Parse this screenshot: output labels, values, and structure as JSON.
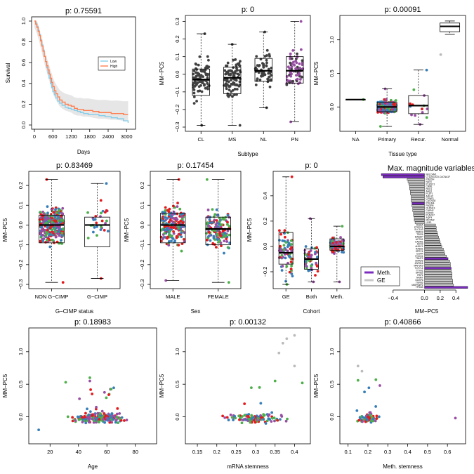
{
  "colors": {
    "box_point": "#404040",
    "purple": "#984EA3",
    "red": "#E41A1C",
    "blue": "#377EB8",
    "green": "#4DAF4A",
    "gray": "#BBBBBB",
    "km_low": "#87CEEB",
    "km_high": "#FF7F50",
    "bar_meth": "#7B2CBF",
    "bar_ge": "#C8C8C8"
  },
  "chart_data": [
    {
      "id": "survival",
      "type": "line",
      "title": "p: 0.75591",
      "xlabel": "Days",
      "ylabel": "Survival",
      "xlim": [
        0,
        3200
      ],
      "ylim": [
        0,
        1
      ],
      "xticks": [
        "0",
        "600",
        "1200",
        "1800",
        "2400",
        "3000"
      ],
      "yticks": [
        "0.0",
        "0.2",
        "0.4",
        "0.6",
        "0.8",
        "1.0"
      ],
      "legend": [
        "Low",
        "High"
      ],
      "series": [
        {
          "name": "Low",
          "x": [
            0,
            40,
            80,
            120,
            160,
            200,
            240,
            280,
            320,
            360,
            400,
            440,
            480,
            520,
            560,
            600,
            650,
            700,
            760,
            820,
            900,
            1000,
            1100,
            1200,
            1300,
            1400,
            1500,
            1600,
            1750,
            1900,
            2100,
            2300,
            2500,
            2700,
            2900,
            3050
          ],
          "y": [
            1.0,
            0.98,
            0.95,
            0.91,
            0.87,
            0.82,
            0.77,
            0.72,
            0.66,
            0.61,
            0.55,
            0.5,
            0.45,
            0.4,
            0.36,
            0.32,
            0.29,
            0.26,
            0.23,
            0.21,
            0.19,
            0.17,
            0.16,
            0.15,
            0.14,
            0.13,
            0.12,
            0.11,
            0.1,
            0.1,
            0.09,
            0.08,
            0.07,
            0.06,
            0.04,
            0.02
          ]
        },
        {
          "name": "High",
          "x": [
            0,
            40,
            80,
            120,
            160,
            200,
            240,
            280,
            320,
            360,
            400,
            440,
            480,
            520,
            560,
            600,
            650,
            700,
            760,
            820,
            900,
            1000,
            1100,
            1200,
            1300,
            1400,
            1500,
            1600,
            1750,
            1900,
            2100,
            2300,
            2500,
            2700,
            2900,
            3050
          ],
          "y": [
            1.0,
            0.97,
            0.94,
            0.9,
            0.86,
            0.81,
            0.76,
            0.71,
            0.66,
            0.61,
            0.57,
            0.53,
            0.49,
            0.45,
            0.41,
            0.37,
            0.33,
            0.3,
            0.27,
            0.24,
            0.22,
            0.2,
            0.19,
            0.18,
            0.16,
            0.15,
            0.15,
            0.14,
            0.14,
            0.13,
            0.12,
            0.12,
            0.11,
            0.11,
            0.1,
            0.1
          ]
        }
      ]
    },
    {
      "id": "subtype",
      "type": "box",
      "title": "p: 0",
      "xlabel": "Subtype",
      "ylabel": "MM−PC5",
      "ylim": [
        -0.3,
        0.31
      ],
      "yticks": [
        -0.3,
        -0.2,
        -0.1,
        0.0,
        0.1,
        0.2,
        0.3
      ],
      "categories": [
        "CL",
        "MS",
        "NL",
        "PN"
      ],
      "boxes": [
        {
          "min": -0.29,
          "q1": -0.12,
          "median": -0.03,
          "q3": 0.03,
          "max": 0.23
        },
        {
          "min": -0.29,
          "q1": -0.11,
          "median": -0.02,
          "q3": 0.04,
          "max": 0.17
        },
        {
          "min": -0.19,
          "q1": -0.04,
          "median": 0.02,
          "q3": 0.09,
          "max": 0.24
        },
        {
          "min": -0.27,
          "q1": -0.05,
          "median": 0.02,
          "q3": 0.1,
          "max": 0.3
        }
      ]
    },
    {
      "id": "tissue",
      "type": "box",
      "title": "p: 0.00091",
      "xlabel": "Tissue type",
      "ylabel": "MM−PC5",
      "ylim": [
        -0.3,
        1.3
      ],
      "yticks": [
        0.0,
        0.5,
        1.0
      ],
      "categories": [
        "NA",
        "Primary",
        "Recur.",
        "Normal"
      ],
      "boxes": [
        {
          "min": 0.11,
          "q1": 0.11,
          "median": 0.11,
          "q3": 0.11,
          "max": 0.11
        },
        {
          "min": -0.29,
          "q1": -0.07,
          "median": 0.0,
          "q3": 0.07,
          "max": 0.27
        },
        {
          "min": -0.26,
          "q1": -0.1,
          "median": 0.02,
          "q3": 0.17,
          "max": 0.55
        },
        {
          "min": 1.08,
          "q1": 1.12,
          "median": 1.2,
          "q3": 1.25,
          "max": 1.28
        }
      ]
    },
    {
      "id": "gcimp",
      "type": "box",
      "title": "p: 0.83469",
      "xlabel": "G−CIMP status",
      "ylabel": "MM−PC5",
      "ylim": [
        -0.3,
        0.25
      ],
      "yticks": [
        -0.3,
        -0.2,
        -0.1,
        0.0,
        0.1,
        0.2
      ],
      "categories": [
        "NON G−CIMP",
        "G−CIMP"
      ],
      "boxes": [
        {
          "min": -0.29,
          "q1": -0.09,
          "median": 0.0,
          "q3": 0.05,
          "max": 0.23
        },
        {
          "min": -0.27,
          "q1": -0.11,
          "median": 0.0,
          "q3": 0.04,
          "max": 0.21
        }
      ]
    },
    {
      "id": "sex",
      "type": "box",
      "title": "p: 0.17454",
      "xlabel": "Sex",
      "ylabel": "MM−PC5",
      "ylim": [
        -0.3,
        0.25
      ],
      "yticks": [
        -0.3,
        -0.2,
        -0.1,
        0.0,
        0.1,
        0.2
      ],
      "categories": [
        "MALE",
        "FEMALE"
      ],
      "boxes": [
        {
          "min": -0.28,
          "q1": -0.09,
          "median": 0.0,
          "q3": 0.06,
          "max": 0.23
        },
        {
          "min": -0.29,
          "q1": -0.1,
          "median": -0.02,
          "q3": 0.04,
          "max": 0.23
        }
      ]
    },
    {
      "id": "cohort",
      "type": "box",
      "title": "p: 0",
      "xlabel": "Cohort",
      "ylabel": "MM−PC5",
      "ylim": [
        -0.3,
        0.56
      ],
      "yticks": [
        -0.2,
        0.0,
        0.2,
        0.4
      ],
      "categories": [
        "GE",
        "Both",
        "Meth."
      ],
      "boxes": [
        {
          "min": -0.3,
          "q1": -0.14,
          "median": -0.05,
          "q3": 0.11,
          "max": 0.55
        },
        {
          "min": -0.28,
          "q1": -0.18,
          "median": -0.1,
          "q3": -0.02,
          "max": 0.22
        },
        {
          "min": -0.28,
          "q1": -0.03,
          "median": 0.0,
          "q3": 0.06,
          "max": 0.16
        }
      ]
    },
    {
      "id": "maxmag",
      "type": "bar",
      "title": "Max. magnitude variables",
      "xlabel": "MM−PC5",
      "xlim": [
        -0.55,
        0.55
      ],
      "xticks": [
        "−0.4",
        "0.0",
        "0.2",
        "0.4"
      ],
      "legend": [
        "Meth.",
        "GE"
      ],
      "categories": [
        "NFLC4M1",
        "CTD2514C5.CACNA1F",
        "PRODH",
        "NAT6",
        "PLXDC1",
        "CHML",
        "NKD1",
        "AAQ1",
        "PLZF1",
        "ARL4C",
        "CPNE3",
        "CACNG8",
        "PDLIM4",
        "PAQR6",
        "OLFML3",
        "CAPN2",
        "FGFR3",
        "PLA2G7",
        "AQP4",
        "MYOM2",
        "LRP1",
        "RGMA",
        "PTPRZ1",
        "SLC1A3",
        "PARD3",
        "TRIP6",
        "DAB2IP",
        "ACTN1",
        "CADM1",
        "SOX2",
        "AHDC1",
        "RAB31",
        "SPRY4",
        "EGFR",
        "FOXG1",
        "TNNT2",
        "SMAD6",
        "ZNF516",
        "MAP3K9",
        "TCF7L1",
        "TTYH1",
        "SPNS2",
        "FBP1",
        "NNMT",
        "DUSP6",
        "TGFB3",
        "MAPK8IP2",
        "TP53I3"
      ],
      "values": [
        -0.55,
        -0.53,
        -0.22,
        -0.21,
        -0.2,
        -0.19,
        -0.19,
        -0.18,
        -0.18,
        -0.17,
        -0.17,
        -0.17,
        -0.16,
        -0.16,
        -0.15,
        -0.15,
        -0.14,
        -0.14,
        -0.13,
        -0.13,
        -0.12,
        0.14,
        0.15,
        0.15,
        0.16,
        0.17,
        0.18,
        0.19,
        0.2,
        0.21,
        0.22,
        0.24,
        0.25,
        0.26,
        0.28,
        0.3,
        0.32,
        0.33,
        0.33,
        0.34,
        0.34,
        0.35,
        0.35,
        0.35,
        0.36,
        0.36,
        0.37,
        0.55
      ],
      "groups": [
        "Meth.",
        "Meth.",
        "GE",
        "GE",
        "GE",
        "GE",
        "GE",
        "GE",
        "GE",
        "GE",
        "GE",
        "GE",
        "Meth.",
        "GE",
        "GE",
        "GE",
        "GE",
        "GE",
        "GE",
        "GE",
        "GE",
        "GE",
        "GE",
        "GE",
        "GE",
        "GE",
        "GE",
        "GE",
        "GE",
        "GE",
        "GE",
        "GE",
        "GE",
        "GE",
        "GE",
        "Meth.",
        "GE",
        "GE",
        "GE",
        "Meth.",
        "GE",
        "GE",
        "GE",
        "GE",
        "GE",
        "GE",
        "GE",
        "Meth."
      ]
    },
    {
      "id": "age",
      "type": "scatter",
      "title": "p: 0.18983",
      "xlabel": "Age",
      "ylabel": "MM−PC5",
      "xlim": [
        8,
        92
      ],
      "ylim": [
        -0.35,
        1.3
      ],
      "xticks": [
        20,
        40,
        60,
        80
      ],
      "yticks": [
        0.0,
        0.5,
        1.0
      ]
    },
    {
      "id": "mrna",
      "type": "scatter",
      "title": "p: 0.00132",
      "xlabel": "mRNA stemness",
      "ylabel": "MM−PC5",
      "xlim": [
        0.13,
        0.43
      ],
      "ylim": [
        -0.35,
        1.3
      ],
      "xticks": [
        0.15,
        0.2,
        0.25,
        0.3,
        0.35,
        0.4
      ],
      "yticks": [
        0.0,
        0.5,
        1.0
      ]
    },
    {
      "id": "meth",
      "type": "scatter",
      "title": "p: 0.40866",
      "xlabel": "Meth. stemness",
      "ylabel": "MM−PC5",
      "xlim": [
        0.08,
        0.67
      ],
      "ylim": [
        -0.35,
        1.3
      ],
      "xticks": [
        0.1,
        0.2,
        0.3,
        0.4,
        0.5,
        0.6
      ],
      "yticks": [
        0.0,
        0.5,
        1.0
      ]
    }
  ]
}
